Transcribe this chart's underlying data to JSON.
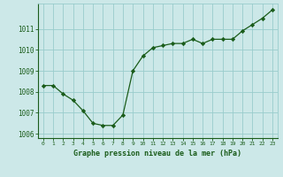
{
  "x": [
    0,
    1,
    2,
    3,
    4,
    5,
    6,
    7,
    8,
    9,
    10,
    11,
    12,
    13,
    14,
    15,
    16,
    17,
    18,
    19,
    20,
    21,
    22,
    23
  ],
  "y": [
    1008.3,
    1008.3,
    1007.9,
    1007.6,
    1007.1,
    1006.5,
    1006.4,
    1006.4,
    1006.9,
    1009.0,
    1009.7,
    1010.1,
    1010.2,
    1010.3,
    1010.3,
    1010.5,
    1010.3,
    1010.5,
    1010.5,
    1010.5,
    1010.9,
    1011.2,
    1011.5,
    1011.9
  ],
  "line_color": "#1a5c1a",
  "marker": "D",
  "marker_size": 2.2,
  "bg_color": "#cce8e8",
  "grid_color": "#99cccc",
  "xlabel": "Graphe pression niveau de la mer (hPa)",
  "xlabel_color": "#1a5c1a",
  "tick_color": "#1a5c1a",
  "ylim": [
    1005.8,
    1012.2
  ],
  "yticks": [
    1006,
    1007,
    1008,
    1009,
    1010,
    1011
  ],
  "xlim": [
    -0.5,
    23.5
  ],
  "xticks": [
    0,
    1,
    2,
    3,
    4,
    5,
    6,
    7,
    8,
    9,
    10,
    11,
    12,
    13,
    14,
    15,
    16,
    17,
    18,
    19,
    20,
    21,
    22,
    23
  ]
}
